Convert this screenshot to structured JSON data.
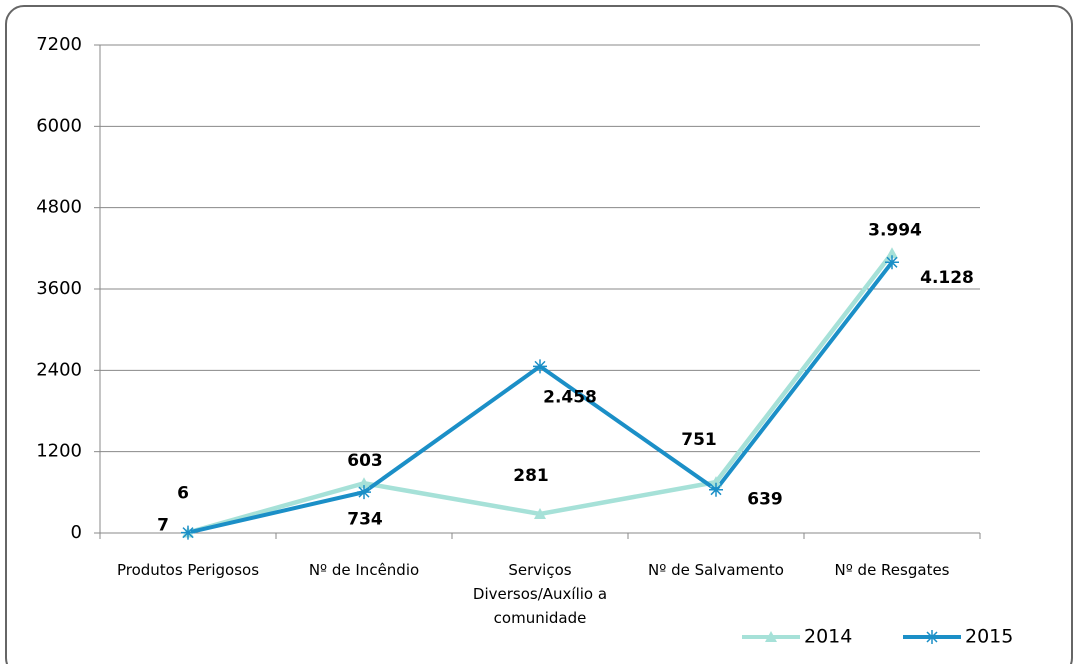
{
  "chart_data": {
    "type": "line",
    "categories": [
      "Produtos Perigosos",
      "Nº de Incêndio",
      "Serviços Diversos/Auxílio a comunidade",
      "Nº de Salvamento",
      "Nº  de Resgates"
    ],
    "series": [
      {
        "name": "2014",
        "color": "#a6e1d8",
        "marker": "triangle",
        "values": [
          7,
          734,
          281,
          751,
          4128
        ],
        "value_labels": [
          "7",
          "734",
          "281",
          "751",
          "4.128"
        ]
      },
      {
        "name": "2015",
        "color": "#1b8fc7",
        "marker": "star",
        "values": [
          6,
          603,
          2458,
          639,
          3994
        ],
        "value_labels": [
          "6",
          "603",
          "2.458",
          "639",
          "3.994"
        ]
      }
    ],
    "ylim": [
      0,
      7200
    ],
    "yticks": [
      0,
      1200,
      2400,
      3600,
      4800,
      6000,
      7200
    ],
    "grid": true,
    "legend": "bottom-right"
  }
}
